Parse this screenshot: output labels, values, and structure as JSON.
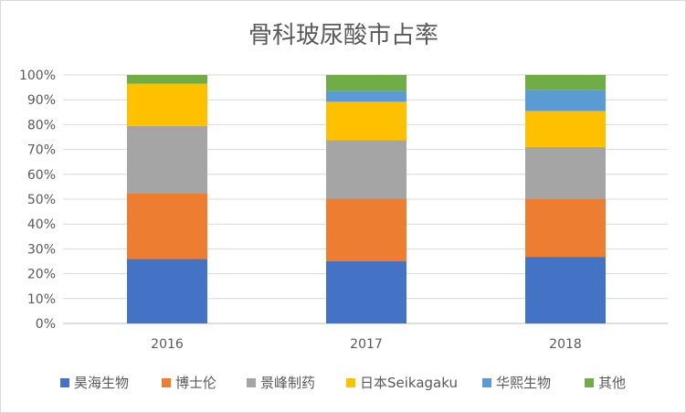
{
  "chart_data": {
    "type": "bar",
    "stacked": "percent",
    "title": "骨科玻尿酸市占率",
    "categories": [
      "2016",
      "2017",
      "2018"
    ],
    "y_ticks": [
      "0%",
      "10%",
      "20%",
      "30%",
      "40%",
      "50%",
      "60%",
      "70%",
      "80%",
      "90%",
      "100%"
    ],
    "ylim": [
      0,
      100
    ],
    "grid": true,
    "legend_position": "bottom",
    "series": [
      {
        "name": "昊海生物",
        "color": "#4472C4",
        "values": [
          26,
          25,
          26.8
        ]
      },
      {
        "name": "博士伦",
        "color": "#ED7D31",
        "values": [
          26.5,
          25.2,
          23.2
        ]
      },
      {
        "name": "景峰制药",
        "color": "#A5A5A5",
        "values": [
          27,
          23.5,
          21
        ]
      },
      {
        "name": "日本Seikagaku",
        "color": "#FFC000",
        "values": [
          17,
          15.5,
          14.5
        ]
      },
      {
        "name": "华熙生物",
        "color": "#5B9BD5",
        "values": [
          0.2,
          4.3,
          8.5
        ]
      },
      {
        "name": "其他",
        "color": "#70AD47",
        "values": [
          3.3,
          6.5,
          6
        ]
      }
    ]
  }
}
